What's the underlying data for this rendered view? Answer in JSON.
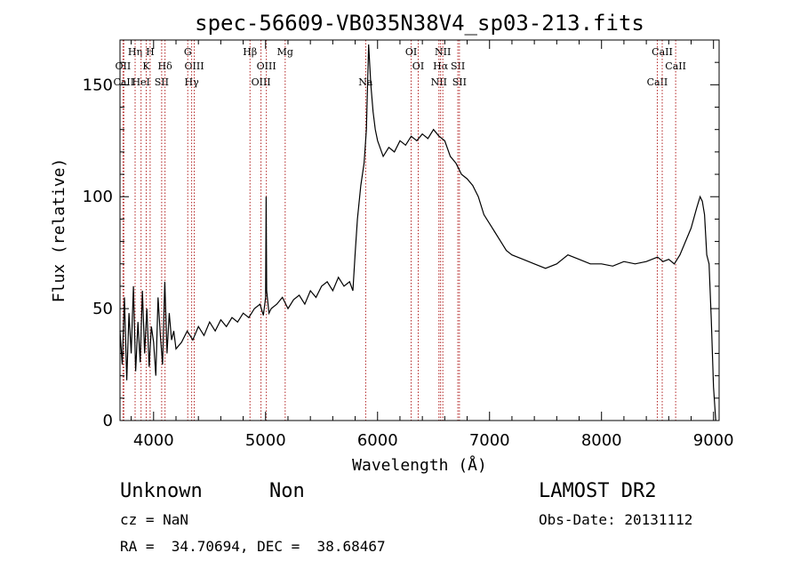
{
  "chart_data": {
    "type": "line",
    "title": "spec-56609-VB035N38V4_sp03-213.fits",
    "xlabel": "Wavelength (Å)",
    "ylabel": "Flux (relative)",
    "xlim": [
      3700,
      9050
    ],
    "ylim": [
      0,
      170
    ],
    "xticks": [
      4000,
      5000,
      6000,
      7000,
      8000,
      9000
    ],
    "yticks": [
      0,
      50,
      100,
      150
    ],
    "grid": false,
    "series": [
      {
        "color": "#000000",
        "x": [
          3700,
          3720,
          3740,
          3760,
          3780,
          3800,
          3820,
          3840,
          3860,
          3880,
          3900,
          3920,
          3940,
          3960,
          3980,
          4000,
          4020,
          4040,
          4060,
          4080,
          4100,
          4120,
          4140,
          4160,
          4180,
          4200,
          4250,
          4300,
          4350,
          4400,
          4450,
          4500,
          4550,
          4600,
          4650,
          4700,
          4750,
          4800,
          4850,
          4900,
          4950,
          4980,
          5000,
          5005,
          5010,
          5030,
          5050,
          5100,
          5150,
          5200,
          5250,
          5300,
          5350,
          5400,
          5450,
          5500,
          5550,
          5600,
          5650,
          5700,
          5750,
          5780,
          5800,
          5820,
          5850,
          5880,
          5900,
          5920,
          5940,
          5960,
          5980,
          6000,
          6050,
          6100,
          6150,
          6200,
          6250,
          6300,
          6350,
          6400,
          6450,
          6500,
          6550,
          6600,
          6650,
          6700,
          6750,
          6800,
          6850,
          6900,
          6950,
          7000,
          7050,
          7100,
          7150,
          7200,
          7300,
          7400,
          7500,
          7600,
          7700,
          7800,
          7900,
          8000,
          8100,
          8200,
          8300,
          8400,
          8500,
          8550,
          8600,
          8650,
          8700,
          8750,
          8800,
          8850,
          8880,
          8900,
          8920,
          8940,
          8960,
          8980,
          9000,
          9020
        ],
        "values": [
          40,
          25,
          55,
          18,
          48,
          30,
          60,
          22,
          44,
          26,
          58,
          30,
          50,
          24,
          42,
          35,
          20,
          55,
          38,
          25,
          62,
          30,
          48,
          36,
          40,
          32,
          35,
          40,
          36,
          42,
          38,
          44,
          40,
          45,
          42,
          46,
          44,
          48,
          46,
          50,
          52,
          47,
          55,
          100,
          58,
          48,
          50,
          52,
          55,
          50,
          54,
          56,
          52,
          58,
          55,
          60,
          62,
          58,
          64,
          60,
          62,
          58,
          75,
          90,
          105,
          115,
          130,
          168,
          150,
          138,
          130,
          125,
          118,
          122,
          120,
          125,
          123,
          127,
          125,
          128,
          126,
          130,
          127,
          125,
          118,
          115,
          110,
          108,
          105,
          100,
          92,
          88,
          84,
          80,
          76,
          74,
          72,
          70,
          68,
          70,
          74,
          72,
          70,
          70,
          69,
          71,
          70,
          71,
          73,
          71,
          72,
          70,
          74,
          80,
          86,
          95,
          100,
          98,
          92,
          74,
          70,
          45,
          15,
          0
        ]
      }
    ],
    "line_markers": [
      {
        "label": "OII",
        "w": 3727,
        "row": 2
      },
      {
        "label": "CaII",
        "w": 3734,
        "row": 3
      },
      {
        "label": "Hη",
        "w": 3835,
        "row": 1
      },
      {
        "label": "HeI",
        "w": 3888,
        "row": 3
      },
      {
        "label": "K",
        "w": 3934,
        "row": 2
      },
      {
        "label": "H",
        "w": 3969,
        "row": 1
      },
      {
        "label": "SII",
        "w": 4072,
        "row": 3
      },
      {
        "label": "Hδ",
        "w": 4102,
        "row": 2
      },
      {
        "label": "G",
        "w": 4305,
        "row": 1
      },
      {
        "label": "OIII",
        "w": 4363,
        "row": 2
      },
      {
        "label": "Hγ",
        "w": 4340,
        "row": 3
      },
      {
        "label": "Hβ",
        "w": 4861,
        "row": 1
      },
      {
        "label": "OIII",
        "w": 4959,
        "row": 3
      },
      {
        "label": "OIII",
        "w": 5007,
        "row": 2
      },
      {
        "label": "Mg",
        "w": 5175,
        "row": 1
      },
      {
        "label": "Na",
        "w": 5894,
        "row": 3
      },
      {
        "label": "OI",
        "w": 6300,
        "row": 1
      },
      {
        "label": "OI",
        "w": 6363,
        "row": 2
      },
      {
        "label": "NII",
        "w": 6548,
        "row": 3
      },
      {
        "label": "Hα",
        "w": 6563,
        "row": 2
      },
      {
        "label": "NII",
        "w": 6583,
        "row": 1
      },
      {
        "label": "SII",
        "w": 6717,
        "row": 2
      },
      {
        "label": "SII",
        "w": 6731,
        "row": 3
      },
      {
        "label": "CaII",
        "w": 8498,
        "row": 3
      },
      {
        "label": "CaII",
        "w": 8542,
        "row": 1
      },
      {
        "label": "CaII",
        "w": 8662,
        "row": 2
      }
    ],
    "marker_color": "#b22222"
  },
  "info": {
    "object_class": "Unknown",
    "subclass": "Non",
    "survey": "LAMOST DR2",
    "redshift": "cz = NaN",
    "obs_date": "Obs-Date: 20131112",
    "coords": "RA =  34.70694, DEC =  38.68467"
  }
}
